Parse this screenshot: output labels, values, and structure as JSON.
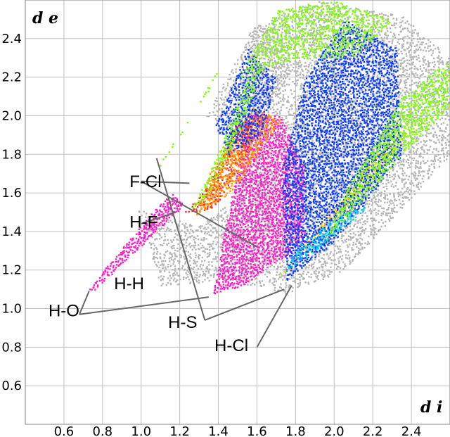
{
  "chart_data": {
    "type": "scatter",
    "title": "",
    "xlabel": "d i",
    "ylabel": "d e",
    "xlim": [
      0.4,
      2.6
    ],
    "ylim": [
      0.4,
      2.6
    ],
    "grid": true,
    "x_ticks": [
      0.6,
      0.8,
      1.0,
      1.2,
      1.4,
      1.6,
      1.8,
      2.0,
      2.2,
      2.4
    ],
    "x_tick_labels": [
      "0.6",
      "0.8",
      "1.0",
      "1.2",
      "1.4",
      "1.6",
      "1.8",
      "2.0",
      "2.2",
      "2.4"
    ],
    "y_ticks": [
      0.6,
      0.8,
      1.0,
      1.2,
      1.4,
      1.6,
      1.8,
      2.0,
      2.2,
      2.4
    ],
    "y_tick_labels": [
      "0.6",
      "0.8",
      "1.0",
      "1.2",
      "1.4",
      "1.6",
      "1.8",
      "2.0",
      "2.2",
      "2.4"
    ],
    "colors": {
      "grey": "#b4b4b4",
      "magenta": "#ff19c8",
      "red": "#ff2a2a",
      "orange": "#ff9a00",
      "yellow": "#ffd400",
      "green": "#7cff00",
      "cyan": "#00d2ff",
      "blue": "#0a3cff",
      "grid": "#c0c0c0",
      "leader": "#666666"
    },
    "regions": [
      {
        "id": "grey-main",
        "color": "grey",
        "density": 0.55,
        "polygon": [
          [
            0.98,
            1.52
          ],
          [
            1.3,
            1.43
          ],
          [
            1.5,
            1.58
          ],
          [
            1.55,
            2.45
          ],
          [
            1.9,
            2.6
          ],
          [
            2.35,
            2.52
          ],
          [
            2.6,
            2.3
          ],
          [
            2.6,
            1.8
          ],
          [
            2.05,
            1.2
          ],
          [
            1.75,
            1.08
          ],
          [
            1.45,
            1.15
          ],
          [
            1.1,
            1.12
          ]
        ]
      },
      {
        "id": "grey-upper-left",
        "color": "grey",
        "density": 0.5,
        "polygon": [
          [
            1.33,
            2.0
          ],
          [
            1.55,
            2.4
          ],
          [
            1.7,
            2.5
          ],
          [
            1.78,
            2.2
          ],
          [
            1.52,
            1.9
          ]
        ]
      },
      {
        "id": "magenta-core",
        "color": "magenta",
        "density": 0.9,
        "polygon": [
          [
            1.37,
            1.08
          ],
          [
            1.52,
            1.12
          ],
          [
            1.85,
            1.35
          ],
          [
            1.85,
            1.72
          ],
          [
            1.72,
            2.0
          ],
          [
            1.55,
            2.02
          ],
          [
            1.5,
            1.75
          ],
          [
            1.42,
            1.35
          ]
        ]
      },
      {
        "id": "magenta-spike",
        "color": "magenta",
        "density": 0.9,
        "polygon": [
          [
            0.72,
            1.1
          ],
          [
            0.76,
            1.1
          ],
          [
            1.22,
            1.54
          ],
          [
            1.16,
            1.6
          ],
          [
            1.05,
            1.5
          ]
        ]
      },
      {
        "id": "red-band",
        "color": "red",
        "density": 0.75,
        "polygon": [
          [
            1.22,
            1.5
          ],
          [
            1.38,
            1.52
          ],
          [
            1.55,
            1.82
          ],
          [
            1.58,
            1.98
          ],
          [
            1.5,
            2.0
          ],
          [
            1.35,
            1.65
          ]
        ]
      },
      {
        "id": "orange-band",
        "color": "orange",
        "density": 0.75,
        "polygon": [
          [
            1.28,
            1.48
          ],
          [
            1.48,
            1.62
          ],
          [
            1.72,
            1.98
          ],
          [
            1.58,
            2.05
          ],
          [
            1.35,
            1.7
          ]
        ]
      },
      {
        "id": "yellow-edge",
        "color": "yellow",
        "density": 0.8,
        "polygon": [
          [
            1.7,
            1.15
          ],
          [
            2.3,
            1.8
          ],
          [
            2.4,
            1.95
          ],
          [
            2.2,
            1.78
          ],
          [
            1.72,
            1.18
          ]
        ]
      },
      {
        "id": "blue-right",
        "color": "blue",
        "density": 0.8,
        "polygon": [
          [
            1.75,
            1.15
          ],
          [
            2.0,
            1.35
          ],
          [
            2.35,
            1.8
          ],
          [
            2.32,
            2.35
          ],
          [
            2.05,
            2.5
          ],
          [
            1.85,
            2.2
          ],
          [
            1.72,
            1.7
          ]
        ]
      },
      {
        "id": "blue-top",
        "color": "blue",
        "density": 0.75,
        "polygon": [
          [
            1.38,
            1.95
          ],
          [
            1.55,
            2.35
          ],
          [
            1.7,
            2.2
          ],
          [
            1.62,
            1.9
          ],
          [
            1.45,
            1.8
          ]
        ]
      },
      {
        "id": "cyan-patch",
        "color": "cyan",
        "density": 0.7,
        "polygon": [
          [
            1.75,
            1.2
          ],
          [
            1.9,
            1.3
          ],
          [
            2.2,
            1.55
          ],
          [
            2.05,
            1.5
          ],
          [
            1.82,
            1.35
          ]
        ]
      },
      {
        "id": "green-left-spike",
        "color": "green",
        "density": 0.65,
        "polygon": [
          [
            1.08,
            1.72
          ],
          [
            1.2,
            1.9
          ],
          [
            1.4,
            2.25
          ],
          [
            1.36,
            2.15
          ],
          [
            1.12,
            1.8
          ]
        ]
      },
      {
        "id": "green-mid-spike",
        "color": "green",
        "density": 0.65,
        "polygon": [
          [
            1.25,
            1.5
          ],
          [
            1.35,
            1.6
          ],
          [
            1.5,
            1.9
          ],
          [
            1.62,
            2.25
          ],
          [
            1.55,
            2.2
          ],
          [
            1.35,
            1.7
          ]
        ]
      },
      {
        "id": "green-right-band",
        "color": "green",
        "density": 0.7,
        "polygon": [
          [
            1.95,
            1.35
          ],
          [
            2.4,
            1.85
          ],
          [
            2.6,
            2.05
          ],
          [
            2.6,
            2.3
          ],
          [
            2.35,
            2.1
          ],
          [
            2.05,
            1.6
          ]
        ]
      },
      {
        "id": "green-top",
        "color": "green",
        "density": 0.6,
        "polygon": [
          [
            1.5,
            2.2
          ],
          [
            1.7,
            2.55
          ],
          [
            2.0,
            2.6
          ],
          [
            2.3,
            2.5
          ],
          [
            2.1,
            2.3
          ],
          [
            1.8,
            2.3
          ]
        ]
      }
    ],
    "annotations": [
      {
        "text": "F-Cl",
        "x": 0.94,
        "y": 1.63,
        "lines": [
          [
            [
              1.0,
              1.66
            ],
            [
              1.25,
              1.65
            ]
          ],
          [
            [
              1.0,
              1.66
            ],
            [
              1.6,
              1.32
            ]
          ]
        ]
      },
      {
        "text": "H-F",
        "x": 0.94,
        "y": 1.42,
        "lines": [
          [
            [
              1.0,
              1.44
            ],
            [
              1.18,
              1.5
            ]
          ]
        ]
      },
      {
        "text": "H-H",
        "x": 0.86,
        "y": 1.1,
        "lines": []
      },
      {
        "text": "H-O",
        "x": 0.52,
        "y": 0.96,
        "lines": [
          [
            [
              0.68,
              0.97
            ],
            [
              0.73,
              1.09
            ]
          ],
          [
            [
              0.68,
              0.97
            ],
            [
              1.35,
              1.06
            ]
          ]
        ]
      },
      {
        "text": "H-S",
        "x": 1.14,
        "y": 0.9,
        "lines": [
          [
            [
              1.33,
              0.94
            ],
            [
              1.08,
              1.78
            ]
          ],
          [
            [
              1.33,
              0.94
            ],
            [
              1.74,
              1.1
            ]
          ]
        ]
      },
      {
        "text": "H-Cl",
        "x": 1.38,
        "y": 0.78,
        "lines": [
          [
            [
              1.6,
              0.8
            ],
            [
              1.78,
              1.12
            ]
          ]
        ]
      }
    ]
  }
}
